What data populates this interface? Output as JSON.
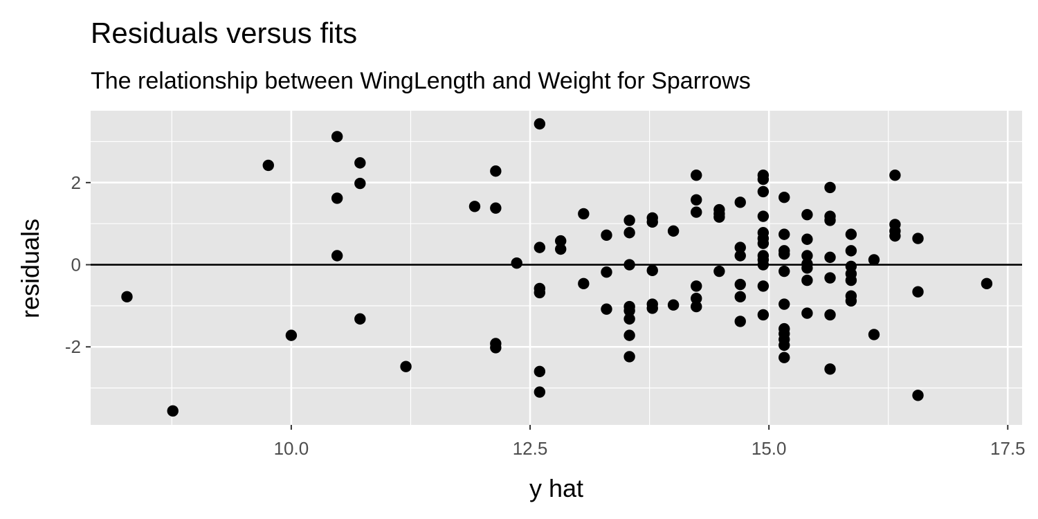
{
  "chart_data": {
    "type": "scatter",
    "title": "Residuals versus fits",
    "subtitle": "The relationship between WingLength and Weight for Sparrows",
    "xlabel": "y hat",
    "ylabel": "residuals",
    "xlim": [
      7.9,
      17.65
    ],
    "ylim": [
      -3.9,
      3.75
    ],
    "x_ticks": [
      10.0,
      12.5,
      15.0,
      17.5
    ],
    "x_tick_labels": [
      "10.0",
      "12.5",
      "15.0",
      "17.5"
    ],
    "y_ticks": [
      -2,
      0,
      2
    ],
    "y_tick_labels": [
      "-2",
      "0",
      "2"
    ],
    "grid": true,
    "reference_line": {
      "y": 0
    },
    "colors": {
      "panel": "#e5e5e5",
      "grid": "#ffffff",
      "points": "#000000",
      "tick_text": "#4d4d4d"
    },
    "points": [
      [
        8.28,
        -0.78
      ],
      [
        8.76,
        -3.56
      ],
      [
        9.76,
        2.42
      ],
      [
        10.0,
        -1.72
      ],
      [
        10.48,
        3.12
      ],
      [
        10.48,
        1.62
      ],
      [
        10.48,
        0.22
      ],
      [
        10.72,
        2.48
      ],
      [
        10.72,
        1.98
      ],
      [
        10.72,
        -1.32
      ],
      [
        11.2,
        -2.48
      ],
      [
        11.92,
        1.42
      ],
      [
        12.14,
        2.28
      ],
      [
        12.14,
        1.38
      ],
      [
        12.14,
        -1.92
      ],
      [
        12.14,
        -2.02
      ],
      [
        12.36,
        0.04
      ],
      [
        12.6,
        3.43
      ],
      [
        12.6,
        0.42
      ],
      [
        12.6,
        -0.58
      ],
      [
        12.6,
        -0.68
      ],
      [
        12.6,
        -2.6
      ],
      [
        12.6,
        -3.1
      ],
      [
        12.82,
        0.58
      ],
      [
        12.82,
        0.38
      ],
      [
        13.06,
        1.24
      ],
      [
        13.06,
        -0.46
      ],
      [
        13.3,
        0.72
      ],
      [
        13.3,
        -0.18
      ],
      [
        13.3,
        -1.08
      ],
      [
        13.54,
        1.08
      ],
      [
        13.54,
        0.78
      ],
      [
        13.54,
        0.0
      ],
      [
        13.54,
        -1.02
      ],
      [
        13.54,
        -1.12
      ],
      [
        13.54,
        -1.32
      ],
      [
        13.54,
        -1.72
      ],
      [
        13.54,
        -2.24
      ],
      [
        13.78,
        1.14
      ],
      [
        13.78,
        1.04
      ],
      [
        13.78,
        -0.14
      ],
      [
        13.78,
        -0.96
      ],
      [
        13.78,
        -1.06
      ],
      [
        14.0,
        0.82
      ],
      [
        14.0,
        -0.98
      ],
      [
        14.24,
        2.18
      ],
      [
        14.24,
        1.58
      ],
      [
        14.24,
        1.28
      ],
      [
        14.24,
        -0.52
      ],
      [
        14.24,
        -0.82
      ],
      [
        14.24,
        -1.02
      ],
      [
        14.48,
        1.34
      ],
      [
        14.48,
        1.24
      ],
      [
        14.48,
        1.16
      ],
      [
        14.48,
        -0.16
      ],
      [
        14.7,
        1.52
      ],
      [
        14.7,
        0.42
      ],
      [
        14.7,
        0.22
      ],
      [
        14.7,
        -0.48
      ],
      [
        14.7,
        -0.78
      ],
      [
        14.7,
        -1.38
      ],
      [
        14.94,
        2.18
      ],
      [
        14.94,
        2.08
      ],
      [
        14.94,
        1.78
      ],
      [
        14.94,
        1.18
      ],
      [
        14.94,
        0.78
      ],
      [
        14.94,
        0.64
      ],
      [
        14.94,
        0.52
      ],
      [
        14.94,
        0.22
      ],
      [
        14.94,
        0.12
      ],
      [
        14.94,
        0.0
      ],
      [
        14.94,
        -0.52
      ],
      [
        14.94,
        -1.22
      ],
      [
        15.16,
        1.64
      ],
      [
        15.16,
        0.74
      ],
      [
        15.16,
        0.34
      ],
      [
        15.16,
        0.26
      ],
      [
        15.16,
        -0.16
      ],
      [
        15.16,
        -0.96
      ],
      [
        15.16,
        -1.56
      ],
      [
        15.16,
        -1.68
      ],
      [
        15.16,
        -1.82
      ],
      [
        15.16,
        -1.96
      ],
      [
        15.16,
        -2.26
      ],
      [
        15.4,
        1.22
      ],
      [
        15.4,
        0.62
      ],
      [
        15.4,
        0.22
      ],
      [
        15.4,
        0.02
      ],
      [
        15.4,
        -0.08
      ],
      [
        15.4,
        -0.38
      ],
      [
        15.4,
        -1.18
      ],
      [
        15.64,
        1.88
      ],
      [
        15.64,
        1.18
      ],
      [
        15.64,
        1.08
      ],
      [
        15.64,
        0.18
      ],
      [
        15.64,
        -0.32
      ],
      [
        15.64,
        -1.22
      ],
      [
        15.64,
        -2.54
      ],
      [
        15.86,
        0.74
      ],
      [
        15.86,
        0.34
      ],
      [
        15.86,
        -0.04
      ],
      [
        15.86,
        -0.22
      ],
      [
        15.86,
        -0.38
      ],
      [
        15.86,
        -0.76
      ],
      [
        15.86,
        -0.88
      ],
      [
        16.1,
        0.12
      ],
      [
        16.1,
        -1.7
      ],
      [
        16.32,
        2.18
      ],
      [
        16.32,
        0.98
      ],
      [
        16.32,
        0.82
      ],
      [
        16.32,
        0.7
      ],
      [
        16.56,
        0.64
      ],
      [
        16.56,
        -0.66
      ],
      [
        16.56,
        -3.18
      ],
      [
        17.28,
        -0.46
      ]
    ]
  }
}
